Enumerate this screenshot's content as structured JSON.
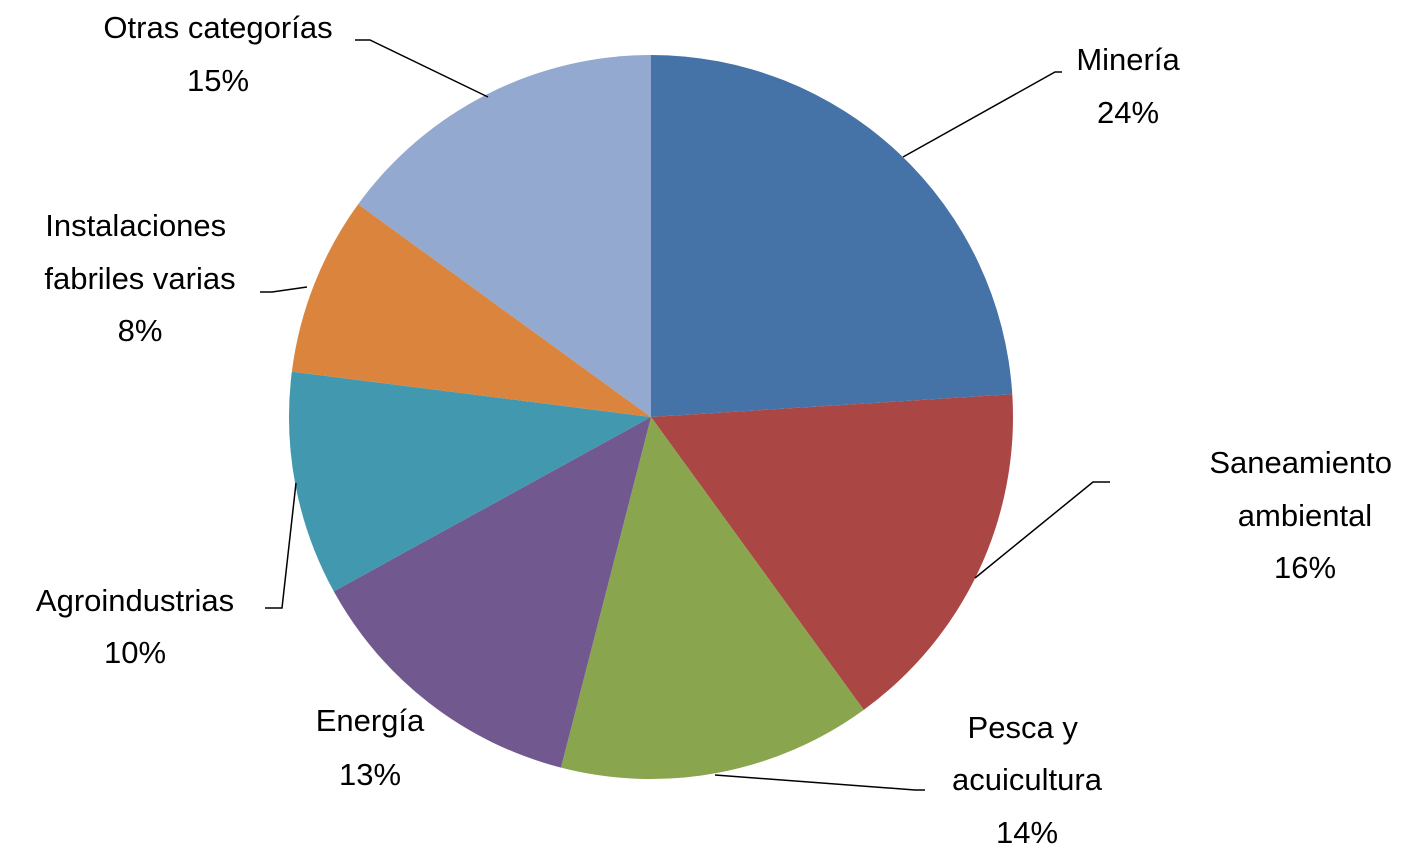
{
  "chart_data": {
    "type": "pie",
    "categories": [
      "Minería",
      "Saneamiento ambiental",
      "Pesca y acuicultura",
      "Energía",
      "Agroindustrias",
      "Instalaciones fabriles varias",
      "Otras categorías"
    ],
    "values": [
      24,
      16,
      14,
      13,
      10,
      8,
      15
    ],
    "value_labels": [
      "24%",
      "16%",
      "14%",
      "13%",
      "10%",
      "8%",
      "15%"
    ],
    "colors": [
      "#4572a7",
      "#aa4643",
      "#89a54e",
      "#71588f",
      "#4198af",
      "#db843d",
      "#93a9cf"
    ]
  }
}
